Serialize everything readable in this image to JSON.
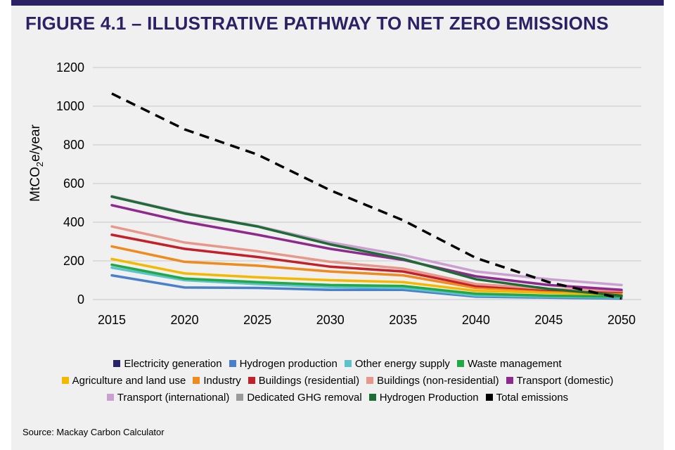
{
  "title": "FIGURE 4.1 – ILLUSTRATIVE PATHWAY TO NET ZERO EMISSIONS",
  "source": "Source: Mackay Carbon Calculator",
  "chart_data": {
    "type": "line",
    "x": [
      2015,
      2020,
      2025,
      2030,
      2035,
      2040,
      2045,
      2050
    ],
    "x_ticks": [
      "2015",
      "2020",
      "2025",
      "2030",
      "2035",
      "2040",
      "2045",
      "2050"
    ],
    "y_ticks": [
      "0",
      "200",
      "400",
      "600",
      "800",
      "1000",
      "1200"
    ],
    "ylim": [
      0,
      1200
    ],
    "ylabel": "MtCO2e/year",
    "ylabel_main": "MtCO",
    "ylabel_sub": "2",
    "ylabel_end": "e/year",
    "grid": "horizontal",
    "legend_position": "bottom",
    "series": [
      {
        "name": "Electricity generation",
        "color": "#27246b",
        "values": [
          null,
          null,
          null,
          null,
          null,
          null,
          null,
          null
        ]
      },
      {
        "name": "Hydrogen production",
        "color": "#4a7fc9",
        "values": [
          125,
          62,
          60,
          50,
          50,
          15,
          10,
          5
        ]
      },
      {
        "name": "Other energy supply",
        "color": "#5bc2cc",
        "values": [
          165,
          100,
          80,
          65,
          60,
          20,
          15,
          10
        ]
      },
      {
        "name": "Waste management",
        "color": "#22a845",
        "values": [
          180,
          108,
          90,
          75,
          70,
          30,
          20,
          15
        ]
      },
      {
        "name": "Agriculture and land use",
        "color": "#f5b800",
        "values": [
          210,
          135,
          115,
          100,
          90,
          45,
          35,
          25
        ]
      },
      {
        "name": "Industry",
        "color": "#f08a1c",
        "values": [
          275,
          195,
          175,
          145,
          125,
          60,
          45,
          35
        ]
      },
      {
        "name": "Buildings (residential)",
        "color": "#c4202a",
        "values": [
          335,
          262,
          220,
          170,
          145,
          70,
          50,
          40
        ]
      },
      {
        "name": "Buildings (non-residential)",
        "color": "#e8988a",
        "values": [
          378,
          295,
          250,
          195,
          160,
          80,
          55,
          45
        ]
      },
      {
        "name": "Transport (domestic)",
        "color": "#8e2a8e",
        "values": [
          488,
          402,
          335,
          262,
          205,
          120,
          75,
          50
        ]
      },
      {
        "name": "Transport (international)",
        "color": "#c9a0cf",
        "values": [
          535,
          448,
          380,
          295,
          230,
          145,
          105,
          75
        ]
      },
      {
        "name": "Dedicated GHG removal",
        "color": "#9a9a9a",
        "values": [
          null,
          null,
          null,
          null,
          null,
          null,
          null,
          null
        ]
      },
      {
        "name": "Hydrogen Production",
        "color": "#1d6b35",
        "values": [
          532,
          445,
          378,
          285,
          210,
          105,
          55,
          20
        ]
      },
      {
        "name": "Total emissions",
        "color": "#000000",
        "dashed": true,
        "values": [
          1065,
          880,
          750,
          565,
          410,
          215,
          90,
          5
        ]
      }
    ],
    "legend_rows": [
      [
        0,
        1,
        2,
        3
      ],
      [
        4,
        5,
        6,
        7,
        8
      ],
      [
        9,
        10,
        11,
        12
      ]
    ]
  }
}
